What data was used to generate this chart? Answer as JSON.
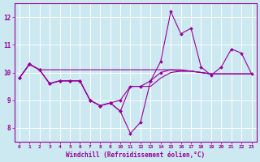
{
  "xlabel": "Windchill (Refroidissement éolien,°C)",
  "background_color": "#cce8f0",
  "line_color": "#990099",
  "grid_color": "#ffffff",
  "xlim": [
    -0.5,
    23.5
  ],
  "ylim": [
    7.5,
    12.5
  ],
  "yticks": [
    8,
    9,
    10,
    11,
    12
  ],
  "xticks": [
    0,
    1,
    2,
    3,
    4,
    5,
    6,
    7,
    8,
    9,
    10,
    11,
    12,
    13,
    14,
    15,
    16,
    17,
    18,
    19,
    20,
    21,
    22,
    23
  ],
  "series": [
    {
      "y": [
        9.8,
        10.3,
        10.1,
        9.6,
        9.7,
        9.7,
        9.7,
        9.0,
        8.8,
        8.9,
        8.6,
        7.8,
        8.2,
        9.7,
        10.4,
        12.2,
        11.4,
        11.6,
        10.2,
        9.9,
        10.2,
        10.85,
        10.7,
        9.95
      ],
      "markers": [
        0,
        1,
        2,
        3,
        4,
        5,
        6,
        7,
        8,
        9,
        10,
        11,
        12,
        13,
        14,
        15,
        16,
        17,
        18,
        19,
        20,
        21,
        22,
        23
      ]
    },
    {
      "y": [
        9.8,
        10.3,
        10.1,
        10.1,
        10.1,
        10.1,
        10.1,
        10.1,
        10.1,
        10.1,
        10.1,
        10.1,
        10.1,
        10.1,
        10.1,
        10.1,
        10.05,
        10.05,
        10.0,
        9.95,
        9.95,
        9.95,
        9.95,
        9.95
      ],
      "markers": [
        0,
        1,
        2
      ]
    },
    {
      "y": [
        9.8,
        10.3,
        10.1,
        9.6,
        9.7,
        9.7,
        9.7,
        9.0,
        8.8,
        8.9,
        8.6,
        9.5,
        9.5,
        9.5,
        9.8,
        10.0,
        10.05,
        10.05,
        10.0,
        9.95,
        9.95,
        9.95,
        9.95,
        9.95
      ],
      "markers": [
        0,
        1,
        2,
        3,
        4,
        5,
        6,
        7,
        8,
        9,
        10
      ]
    },
    {
      "y": [
        9.8,
        10.3,
        10.1,
        9.6,
        9.7,
        9.7,
        9.7,
        9.0,
        8.8,
        8.9,
        9.0,
        9.5,
        9.5,
        9.7,
        10.0,
        10.1,
        10.1,
        10.05,
        10.0,
        9.95,
        9.95,
        9.95,
        9.95,
        9.95
      ],
      "markers": [
        0,
        1,
        2,
        3,
        4,
        5,
        6,
        7,
        8,
        9,
        10,
        11,
        12,
        13,
        14
      ]
    }
  ]
}
